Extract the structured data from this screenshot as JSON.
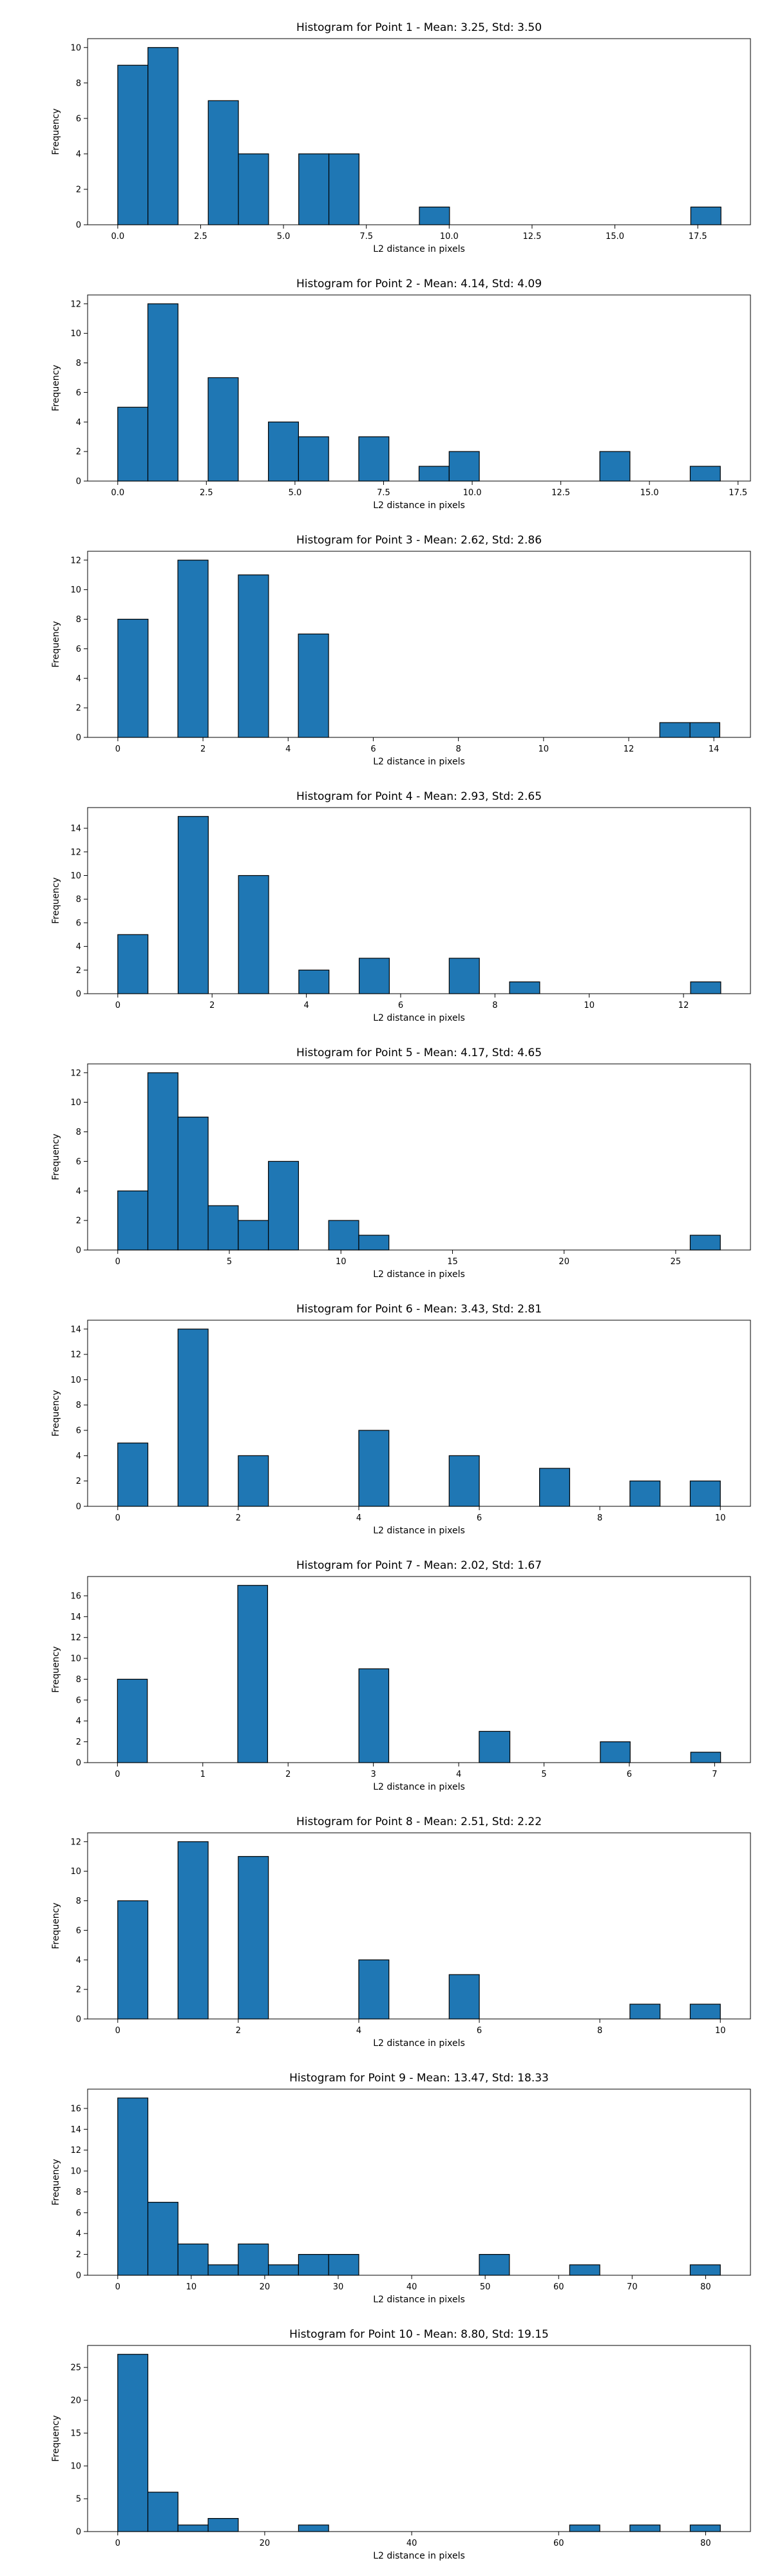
{
  "chart_data": [
    {
      "type": "bar",
      "title": "Histogram for Point 1 - Mean: 3.25, Std: 3.50",
      "xlabel": "L2 distance in pixels",
      "ylabel": "Frequency",
      "xlim": [
        -0.91,
        19.09
      ],
      "ylim": [
        0,
        10.5
      ],
      "xticks": [
        "0.0",
        "2.5",
        "5.0",
        "7.5",
        "10.0",
        "12.5",
        "15.0",
        "17.5"
      ],
      "yticks": [
        "0",
        "2",
        "4",
        "6",
        "8",
        "10"
      ],
      "bins": [
        {
          "x0": 0.0,
          "x1": 0.91,
          "count": 9
        },
        {
          "x0": 0.91,
          "x1": 1.82,
          "count": 10
        },
        {
          "x0": 2.73,
          "x1": 3.64,
          "count": 7
        },
        {
          "x0": 3.64,
          "x1": 4.55,
          "count": 4
        },
        {
          "x0": 5.46,
          "x1": 6.37,
          "count": 4
        },
        {
          "x0": 6.37,
          "x1": 7.28,
          "count": 4
        },
        {
          "x0": 9.1,
          "x1": 10.01,
          "count": 1
        },
        {
          "x0": 17.29,
          "x1": 18.2,
          "count": 1
        }
      ]
    },
    {
      "type": "bar",
      "title": "Histogram for Point 2 - Mean: 4.14, Std: 4.09",
      "xlabel": "L2 distance in pixels",
      "ylabel": "Frequency",
      "xlim": [
        -0.85,
        17.85
      ],
      "ylim": [
        0,
        12.6
      ],
      "xticks": [
        "0.0",
        "2.5",
        "5.0",
        "7.5",
        "10.0",
        "12.5",
        "15.0",
        "17.5"
      ],
      "yticks": [
        "0",
        "2",
        "4",
        "6",
        "8",
        "10",
        "12"
      ],
      "bins": [
        {
          "x0": 0.0,
          "x1": 0.85,
          "count": 5
        },
        {
          "x0": 0.85,
          "x1": 1.7,
          "count": 12
        },
        {
          "x0": 2.55,
          "x1": 3.4,
          "count": 7
        },
        {
          "x0": 4.25,
          "x1": 5.1,
          "count": 4
        },
        {
          "x0": 5.1,
          "x1": 5.95,
          "count": 3
        },
        {
          "x0": 6.8,
          "x1": 7.65,
          "count": 3
        },
        {
          "x0": 8.5,
          "x1": 9.35,
          "count": 1
        },
        {
          "x0": 9.35,
          "x1": 10.2,
          "count": 2
        },
        {
          "x0": 13.6,
          "x1": 14.45,
          "count": 2
        },
        {
          "x0": 16.15,
          "x1": 17.0,
          "count": 1
        }
      ]
    },
    {
      "type": "bar",
      "title": "Histogram for Point 3 - Mean: 2.62, Std: 2.86",
      "xlabel": "L2 distance in pixels",
      "ylabel": "Frequency",
      "xlim": [
        -0.71,
        14.86
      ],
      "ylim": [
        0,
        12.6
      ],
      "xticks": [
        "0",
        "2",
        "4",
        "6",
        "8",
        "10",
        "12",
        "14"
      ],
      "yticks": [
        "0",
        "2",
        "4",
        "6",
        "8",
        "10",
        "12"
      ],
      "bins": [
        {
          "x0": 0.0,
          "x1": 0.71,
          "count": 8
        },
        {
          "x0": 1.41,
          "x1": 2.12,
          "count": 12
        },
        {
          "x0": 2.83,
          "x1": 3.54,
          "count": 11
        },
        {
          "x0": 4.24,
          "x1": 4.95,
          "count": 7
        },
        {
          "x0": 12.73,
          "x1": 13.44,
          "count": 1
        },
        {
          "x0": 13.44,
          "x1": 14.14,
          "count": 1
        }
      ]
    },
    {
      "type": "bar",
      "title": "Histogram for Point 4 - Mean: 2.93, Std: 2.65",
      "xlabel": "L2 distance in pixels",
      "ylabel": "Frequency",
      "xlim": [
        -0.64,
        13.42
      ],
      "ylim": [
        0,
        15.75
      ],
      "xticks": [
        "0",
        "2",
        "4",
        "6",
        "8",
        "10",
        "12"
      ],
      "yticks": [
        "0",
        "2",
        "4",
        "6",
        "8",
        "10",
        "12",
        "14"
      ],
      "bins": [
        {
          "x0": 0.0,
          "x1": 0.64,
          "count": 5
        },
        {
          "x0": 1.28,
          "x1": 1.92,
          "count": 15
        },
        {
          "x0": 2.56,
          "x1": 3.2,
          "count": 10
        },
        {
          "x0": 3.84,
          "x1": 4.48,
          "count": 2
        },
        {
          "x0": 5.12,
          "x1": 5.76,
          "count": 3
        },
        {
          "x0": 7.03,
          "x1": 7.67,
          "count": 3
        },
        {
          "x0": 8.31,
          "x1": 8.95,
          "count": 1
        },
        {
          "x0": 12.15,
          "x1": 12.79,
          "count": 1
        }
      ]
    },
    {
      "type": "bar",
      "title": "Histogram for Point 5 - Mean: 4.17, Std: 4.65",
      "xlabel": "L2 distance in pixels",
      "ylabel": "Frequency",
      "xlim": [
        -1.35,
        28.35
      ],
      "ylim": [
        0,
        12.6
      ],
      "xticks": [
        "0",
        "5",
        "10",
        "15",
        "20",
        "25"
      ],
      "yticks": [
        "0",
        "2",
        "4",
        "6",
        "8",
        "10",
        "12"
      ],
      "bins": [
        {
          "x0": 0.0,
          "x1": 1.35,
          "count": 4
        },
        {
          "x0": 1.35,
          "x1": 2.7,
          "count": 12
        },
        {
          "x0": 2.7,
          "x1": 4.05,
          "count": 9
        },
        {
          "x0": 4.05,
          "x1": 5.4,
          "count": 3
        },
        {
          "x0": 5.4,
          "x1": 6.75,
          "count": 2
        },
        {
          "x0": 6.75,
          "x1": 8.1,
          "count": 6
        },
        {
          "x0": 9.45,
          "x1": 10.8,
          "count": 2
        },
        {
          "x0": 10.8,
          "x1": 12.15,
          "count": 1
        },
        {
          "x0": 25.65,
          "x1": 27.0,
          "count": 1
        }
      ]
    },
    {
      "type": "bar",
      "title": "Histogram for Point 6 - Mean: 3.43, Std: 2.81",
      "xlabel": "L2 distance in pixels",
      "ylabel": "Frequency",
      "xlim": [
        -0.5,
        10.5
      ],
      "ylim": [
        0,
        14.7
      ],
      "xticks": [
        "0",
        "2",
        "4",
        "6",
        "8",
        "10"
      ],
      "yticks": [
        "0",
        "2",
        "4",
        "6",
        "8",
        "10",
        "12",
        "14"
      ],
      "bins": [
        {
          "x0": 0.0,
          "x1": 0.5,
          "count": 5
        },
        {
          "x0": 1.0,
          "x1": 1.5,
          "count": 14
        },
        {
          "x0": 2.0,
          "x1": 2.5,
          "count": 4
        },
        {
          "x0": 4.0,
          "x1": 4.5,
          "count": 6
        },
        {
          "x0": 5.5,
          "x1": 6.0,
          "count": 4
        },
        {
          "x0": 7.0,
          "x1": 7.5,
          "count": 3
        },
        {
          "x0": 8.5,
          "x1": 9.0,
          "count": 2
        },
        {
          "x0": 9.5,
          "x1": 10.0,
          "count": 2
        }
      ]
    },
    {
      "type": "bar",
      "title": "Histogram for Point 7 - Mean: 2.02, Std: 1.67",
      "xlabel": "L2 distance in pixels",
      "ylabel": "Frequency",
      "xlim": [
        -0.35,
        7.42
      ],
      "ylim": [
        0,
        17.85
      ],
      "xticks": [
        "0",
        "1",
        "2",
        "3",
        "4",
        "5",
        "6",
        "7"
      ],
      "yticks": [
        "0",
        "2",
        "4",
        "6",
        "8",
        "10",
        "12",
        "14",
        "16"
      ],
      "bins": [
        {
          "x0": 0.0,
          "x1": 0.35,
          "count": 8
        },
        {
          "x0": 1.41,
          "x1": 1.76,
          "count": 17
        },
        {
          "x0": 2.83,
          "x1": 3.18,
          "count": 9
        },
        {
          "x0": 4.24,
          "x1": 4.6,
          "count": 3
        },
        {
          "x0": 5.66,
          "x1": 6.01,
          "count": 2
        },
        {
          "x0": 6.72,
          "x1": 7.07,
          "count": 1
        }
      ]
    },
    {
      "type": "bar",
      "title": "Histogram for Point 8 - Mean: 2.51, Std: 2.22",
      "xlabel": "L2 distance in pixels",
      "ylabel": "Frequency",
      "xlim": [
        -0.5,
        10.5
      ],
      "ylim": [
        0,
        12.6
      ],
      "xticks": [
        "0",
        "2",
        "4",
        "6",
        "8",
        "10"
      ],
      "yticks": [
        "0",
        "2",
        "4",
        "6",
        "8",
        "10",
        "12"
      ],
      "bins": [
        {
          "x0": 0.0,
          "x1": 0.5,
          "count": 8
        },
        {
          "x0": 1.0,
          "x1": 1.5,
          "count": 12
        },
        {
          "x0": 2.0,
          "x1": 2.5,
          "count": 11
        },
        {
          "x0": 4.0,
          "x1": 4.5,
          "count": 4
        },
        {
          "x0": 5.5,
          "x1": 6.0,
          "count": 3
        },
        {
          "x0": 8.5,
          "x1": 9.0,
          "count": 1
        },
        {
          "x0": 9.5,
          "x1": 10.0,
          "count": 1
        }
      ]
    },
    {
      "type": "bar",
      "title": "Histogram for Point 9 - Mean: 13.47, Std: 18.33",
      "xlabel": "L2 distance in pixels",
      "ylabel": "Frequency",
      "xlim": [
        -4.1,
        86.1
      ],
      "ylim": [
        0,
        17.85
      ],
      "xticks": [
        "0",
        "10",
        "20",
        "30",
        "40",
        "50",
        "60",
        "70",
        "80"
      ],
      "yticks": [
        "0",
        "2",
        "4",
        "6",
        "8",
        "10",
        "12",
        "14",
        "16"
      ],
      "bins": [
        {
          "x0": 0.0,
          "x1": 4.1,
          "count": 17
        },
        {
          "x0": 4.1,
          "x1": 8.2,
          "count": 7
        },
        {
          "x0": 8.2,
          "x1": 12.3,
          "count": 3
        },
        {
          "x0": 12.3,
          "x1": 16.4,
          "count": 1
        },
        {
          "x0": 16.4,
          "x1": 20.5,
          "count": 3
        },
        {
          "x0": 20.5,
          "x1": 24.6,
          "count": 1
        },
        {
          "x0": 24.6,
          "x1": 28.7,
          "count": 2
        },
        {
          "x0": 28.7,
          "x1": 32.8,
          "count": 2
        },
        {
          "x0": 49.2,
          "x1": 53.3,
          "count": 2
        },
        {
          "x0": 61.5,
          "x1": 65.6,
          "count": 1
        },
        {
          "x0": 77.9,
          "x1": 82.0,
          "count": 1
        }
      ]
    },
    {
      "type": "bar",
      "title": "Histogram for Point 10 - Mean: 8.80, Std: 19.15",
      "xlabel": "L2 distance in pixels",
      "ylabel": "Frequency",
      "xlim": [
        -4.1,
        86.1
      ],
      "ylim": [
        0,
        28.35
      ],
      "xticks": [
        "0",
        "20",
        "40",
        "60",
        "80"
      ],
      "yticks": [
        "0",
        "5",
        "10",
        "15",
        "20",
        "25"
      ],
      "bins": [
        {
          "x0": 0.0,
          "x1": 4.1,
          "count": 27
        },
        {
          "x0": 4.1,
          "x1": 8.2,
          "count": 6
        },
        {
          "x0": 8.2,
          "x1": 12.3,
          "count": 1
        },
        {
          "x0": 12.3,
          "x1": 16.4,
          "count": 2
        },
        {
          "x0": 24.6,
          "x1": 28.7,
          "count": 1
        },
        {
          "x0": 61.5,
          "x1": 65.6,
          "count": 1
        },
        {
          "x0": 69.7,
          "x1": 73.8,
          "count": 1
        },
        {
          "x0": 77.9,
          "x1": 82.0,
          "count": 1
        }
      ]
    }
  ],
  "colors": {
    "bar_fill": "#1f77b4",
    "bar_edge": "#000000",
    "axes": "#000000",
    "background": "#ffffff"
  }
}
